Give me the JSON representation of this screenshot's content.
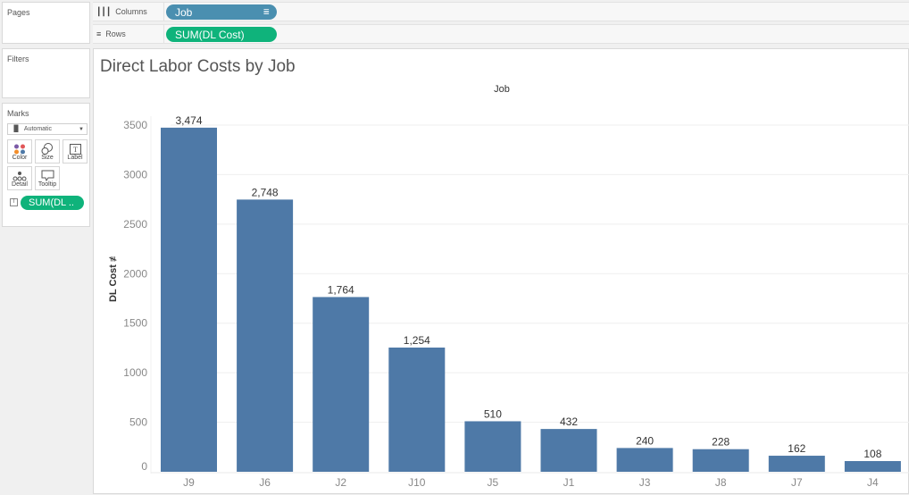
{
  "pages": {
    "title": "Pages"
  },
  "filters": {
    "title": "Filters"
  },
  "marks": {
    "title": "Marks",
    "type": "Automatic",
    "buttons": [
      {
        "label": "Color",
        "icon": "color-dots-icon"
      },
      {
        "label": "Size",
        "icon": "size-circles-icon"
      },
      {
        "label": "Label",
        "icon": "label-text-icon"
      },
      {
        "label": "Detail",
        "icon": "detail-dots-icon"
      },
      {
        "label": "Tooltip",
        "icon": "tooltip-bubble-icon"
      }
    ],
    "field_pill": "SUM(DL .."
  },
  "shelves": {
    "columns": {
      "label": "Columns",
      "pill": "Job"
    },
    "rows": {
      "label": "Rows",
      "pill": "SUM(DL Cost)"
    }
  },
  "colors": {
    "bar": "#4e79a7",
    "column_pill": "#4a8fb0",
    "measure_pill": "#0fb37b"
  },
  "chart_data": {
    "type": "bar",
    "title": "Direct Labor Costs by Job",
    "xlabel": "Job",
    "ylabel": "DL Cost",
    "categories": [
      "J9",
      "J6",
      "J2",
      "J10",
      "J5",
      "J1",
      "J3",
      "J8",
      "J7",
      "J4"
    ],
    "values": [
      3474,
      2748,
      1764,
      1254,
      510,
      432,
      240,
      228,
      162,
      108
    ],
    "value_labels": [
      "3,474",
      "2,748",
      "1,764",
      "1,254",
      "510",
      "432",
      "240",
      "228",
      "162",
      "108"
    ],
    "yticks": [
      0,
      500,
      1000,
      1500,
      2000,
      2500,
      3000,
      3500
    ],
    "ylim": [
      0,
      3500
    ],
    "grid": true,
    "legend": "none"
  }
}
